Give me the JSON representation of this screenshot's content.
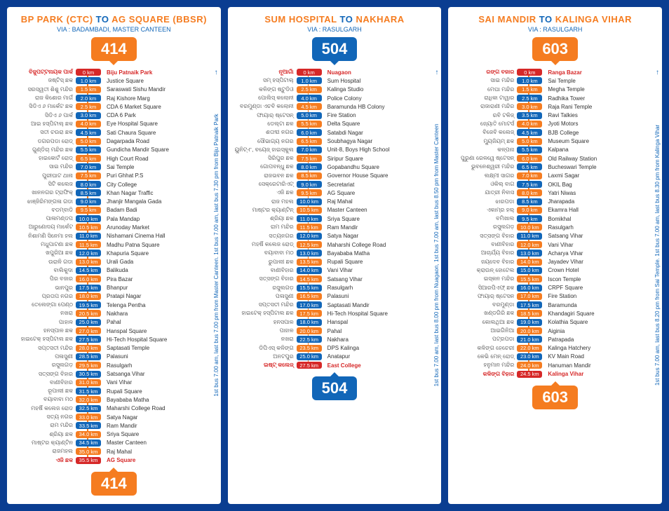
{
  "routes": [
    {
      "badge_color": "orange",
      "number": "414",
      "title_from_pre": "BP PARK (CTC)",
      "title_to": " TO ",
      "title_dest": "AG SQUARE (BBSR)",
      "via": "VIA : BADAMBADI, MASTER CANTEEN",
      "side_note": "1st bus 7.00 am, last bus 7.00 pm from Master Canteen. 1st bus 7.00 am, last bus 7.30 pm from Biju Patnaik Park",
      "stops": [
        {
          "odia": "ବିଜୁପଟ୍ଟନାୟକ ପାର୍କ",
          "km": "0 km",
          "name": "Biju Patnaik Park",
          "terminal": true,
          "km_color": "red"
        },
        {
          "odia": "ଜଷ୍ଟିସ୍ ଛକ",
          "km": "1.0 km",
          "name": "Justice Square",
          "km_color": "blue"
        },
        {
          "odia": "ସରସ୍ୱତୀ ଶିଶୁ ମନ୍ଦିର",
          "km": "1.5 km",
          "name": "Saraswati Sishu Mandir",
          "km_color": "orange"
        },
        {
          "odia": "ରାଜ କିଶୋର ମାର୍ଗ",
          "km": "2.0 km",
          "name": "Raj Kishore Marg",
          "km_color": "blue"
        },
        {
          "odia": "ସିଡିଏ ୬ ମାର୍କେଟ ଛକ",
          "km": "2.5 km",
          "name": "CDA 6 Market Square",
          "km_color": "orange"
        },
        {
          "odia": "ସିଡିଏ ୬ ପାର୍କ",
          "km": "3.0 km",
          "name": "CDA 6 Park",
          "km_color": "blue"
        },
        {
          "odia": "ଆଇ ହସ୍ପିଟାଲ୍ ଛକ",
          "km": "4.0 km",
          "name": "Eye Hospital Square",
          "km_color": "orange"
        },
        {
          "odia": "ସତୀ ଚଉରା ଛକ",
          "km": "4.5 km",
          "name": "Sati Chaura Square",
          "km_color": "blue"
        },
        {
          "odia": "ଡଗରପଡା ରୋଡ୍",
          "km": "5.0 km",
          "name": "Dagarpada Road",
          "km_color": "orange"
        },
        {
          "odia": "ଗୁଣ୍ଡିଚା ମନ୍ଦିର ଛକ",
          "km": "5.5 km",
          "name": "Gundicha Mandir Square",
          "km_color": "blue"
        },
        {
          "odia": "ହାଇକୋର୍ଟ ରୋଡ୍",
          "km": "6.5 km",
          "name": "High Court Road",
          "km_color": "orange"
        },
        {
          "odia": "ସାଇ ମନ୍ଦିର",
          "km": "7.0 km",
          "name": "Sai Temple",
          "km_color": "blue"
        },
        {
          "odia": "ପୁରୀଘାଟ ଥାନା",
          "km": "7.5 km",
          "name": "Puri Ghhat P.S",
          "km_color": "orange"
        },
        {
          "odia": "ସିଟି କଲେଜ",
          "km": "8.0 km",
          "name": "City College",
          "km_color": "blue"
        },
        {
          "odia": "ଖାନନଗର ଟ୍ରାଫିକ୍",
          "km": "8.5 km",
          "name": "Khan Nagar Traffic",
          "km_color": "red"
        },
        {
          "odia": "ଝାଞ୍ଜିରିମଙ୍ଗଳା ଗଡା",
          "km": "9.0 km",
          "name": "Jhanjir Mangala Gada",
          "km_color": "blue"
        },
        {
          "odia": "ବଡମ୍ବାଡି",
          "km": "9.5 km",
          "name": "Badam Badi",
          "km_color": "orange"
        },
        {
          "odia": "ପାଳାମଣ୍ଡପ",
          "km": "10.0 km",
          "name": "Pala Mandap",
          "km_color": "blue"
        },
        {
          "odia": "ଆରୁଣୋଦୟ ମାର୍କେଟ",
          "km": "10.5 km",
          "name": "Arunoday Market",
          "km_color": "orange"
        },
        {
          "odia": "ନିଶାମଣି ସିନେମା ହଲ",
          "km": "11.0 km",
          "name": "Nishamani Cinema Hall",
          "km_color": "blue"
        },
        {
          "odia": "ମଧୁପାଟଣା ଛକ",
          "km": "11.5 km",
          "name": "Madhu Patna Square",
          "km_color": "orange"
        },
        {
          "odia": "ଖପୁରିଆ ଛକ",
          "km": "12.0 km",
          "name": "Khapuria Square",
          "km_color": "blue"
        },
        {
          "odia": "ଉରାଳି ଗଡା",
          "km": "13.0 km",
          "name": "Urali Gada",
          "km_color": "orange"
        },
        {
          "odia": "ବାଲିକୁଦା",
          "km": "14.5 km",
          "name": "Balikuda",
          "km_color": "blue"
        },
        {
          "odia": "ପିର ବଜାର",
          "km": "16.0 km",
          "name": "Pira Bazar",
          "km_color": "orange"
        },
        {
          "odia": "ଭାନପୁର",
          "km": "17.5 km",
          "name": "Bhanpur",
          "km_color": "blue"
        },
        {
          "odia": "ପ୍ରତାପ ନଗର",
          "km": "18.0 km",
          "name": "Pratapi Nagar",
          "km_color": "orange"
        },
        {
          "odia": "ତେଲେଙ୍ଗା ପେଣ୍ଠ",
          "km": "19.5 km",
          "name": "Telenga Pentha",
          "km_color": "blue"
        },
        {
          "odia": "ନଖରା",
          "km": "20.5 km",
          "name": "Nakhara",
          "km_color": "orange"
        },
        {
          "odia": "ପାହାଳ",
          "km": "25.0 km",
          "name": "Pahal",
          "km_color": "blue"
        },
        {
          "odia": "ହନସ୍ପାଳ ଛକ",
          "km": "27.0 km",
          "name": "Hanspal Square",
          "km_color": "orange"
        },
        {
          "odia": "ହାଇଟେକ୍ ହସ୍ପିଟାଲ ଛକ",
          "km": "27.5 km",
          "name": "Hi-Tech Hospital Square",
          "km_color": "blue"
        },
        {
          "odia": "ସପ୍ତସତୀ ମନ୍ଦିର",
          "km": "28.0 km",
          "name": "Saptasati Temple",
          "km_color": "orange"
        },
        {
          "odia": "ପଳାସୁଣୀ",
          "km": "28.5 km",
          "name": "Palasuni",
          "km_color": "blue"
        },
        {
          "odia": "ରସୁଲଗଡ଼",
          "km": "29.5 km",
          "name": "Rasulgarh",
          "km_color": "orange"
        },
        {
          "odia": "ସତ୍ସଙ୍ଗ ବିହାର",
          "km": "30.5 km",
          "name": "Satsanga Vihar",
          "km_color": "blue"
        },
        {
          "odia": "ବାଣୀବିହାର",
          "km": "31.0 km",
          "name": "Vani Vihar",
          "km_color": "orange"
        },
        {
          "odia": "ରୂପାଲୀ ଛକ",
          "km": "31.5 km",
          "name": "Rupali Square",
          "km_color": "blue"
        },
        {
          "odia": "ବୟାବାବା ମଠ",
          "km": "32.0 km",
          "name": "Bayababa Matha",
          "km_color": "orange"
        },
        {
          "odia": "ମହର୍ଷି କଲେଜ ରୋଡ",
          "km": "32.5 km",
          "name": "Maharshi College Road",
          "km_color": "blue"
        },
        {
          "odia": "ସତ୍ୟ ନଗର",
          "km": "33.0 km",
          "name": "Satya Nagar",
          "km_color": "orange"
        },
        {
          "odia": "ରାମ ମନ୍ଦିର",
          "km": "33.5 km",
          "name": "Ram Mandir",
          "km_color": "blue"
        },
        {
          "odia": "ଶ୍ରିୟା ଛକ",
          "km": "34.0 km",
          "name": "Sriya Square",
          "km_color": "orange"
        },
        {
          "odia": "ମାଷ୍ଟର କ୍ୟାଣ୍ଟିନ",
          "km": "34.5 km",
          "name": "Master Canteen",
          "km_color": "blue"
        },
        {
          "odia": "ରାଜମହଲ",
          "km": "35.0 km",
          "name": "Raj Mahal",
          "km_color": "orange"
        },
        {
          "odia": "ଏଜି ଛକ",
          "km": "35.5 km",
          "name": "AG Square",
          "terminal": true,
          "km_color": "red"
        }
      ]
    },
    {
      "badge_color": "blue",
      "number": "504",
      "title_from_pre": "SUM HOSPITAL",
      "title_to": " TO ",
      "title_dest": "NAKHARA",
      "via": "VIA : RASULGARH",
      "side_note": "1st bus 7.00 am, last bus 8.00 pm from Nuagaon, 1st bus 7.00 am, last bus 8.50 pm from Master Canteen",
      "stops": [
        {
          "odia": "ନୂଆଗାଁ",
          "km": "0 km",
          "name": "Nuagaon",
          "terminal": true,
          "km_color": "red"
        },
        {
          "odia": "ସମ୍ ହସ୍ପିଟାଲ୍",
          "km": "1.0 km",
          "name": "Sum Hospital",
          "km_color": "blue"
        },
        {
          "odia": "କଳିଙ୍ଗ ଷ୍ଟୁଡିଓ",
          "km": "2.5 km",
          "name": "Kalinga Studio",
          "km_color": "orange"
        },
        {
          "odia": "ପୋଲିସ୍ କଲୋନୀ",
          "km": "4.0 km",
          "name": "Police Colony",
          "km_color": "blue"
        },
        {
          "odia": "ବରମୁଣ୍ଡା ଏଚବି କଲୋନୀ",
          "km": "4.5 km",
          "name": "Baramunda HB Colony",
          "km_color": "orange"
        },
        {
          "odia": "ଫାୟାର୍ ଷ୍ଟେସନ୍",
          "km": "5.0 km",
          "name": "Fire Station",
          "km_color": "blue"
        },
        {
          "odia": "ଡେଲ୍ଟା ଛକ",
          "km": "5.5 km",
          "name": "Delta Square",
          "km_color": "orange"
        },
        {
          "odia": "ଶତାବ୍ଦୀ ନଗର",
          "km": "6.0 km",
          "name": "Satabdi Nagar",
          "km_color": "blue"
        },
        {
          "odia": "ସୌଭାଗ୍ୟ ନଗର",
          "km": "6.5 km",
          "name": "Soubhagya Nagar",
          "km_color": "orange"
        },
        {
          "odia": "ୟୁନିଟ୍-୮, ବୟେଜ୍ ହାଇସ୍କୁଲ",
          "km": "7.0 km",
          "name": "Unit-8, Boys High School",
          "km_color": "blue"
        },
        {
          "odia": "ସିରିପୁର ଛକ",
          "km": "7.5 km",
          "name": "Siripur Square",
          "km_color": "orange"
        },
        {
          "odia": "ଗୋପବନ୍ଧୁ ଛକ",
          "km": "8.0 km",
          "name": "Gopabandhu Square",
          "km_color": "blue"
        },
        {
          "odia": "ରାଜଭବନ ଛକ",
          "km": "8.5 km",
          "name": "Governor House Square",
          "km_color": "orange"
        },
        {
          "odia": "ସେକ୍ରେଟାରିଏଟ୍",
          "km": "9.0 km",
          "name": "Secretariat",
          "km_color": "blue"
        },
        {
          "odia": "ଏଜି ଛକ",
          "km": "9.5 km",
          "name": "AG Square",
          "km_color": "orange"
        },
        {
          "odia": "ରାଜ ମହଲ",
          "km": "10.0 km",
          "name": "Raj Mahal",
          "km_color": "blue"
        },
        {
          "odia": "ମାଷ୍ଟର କ୍ୟାଣ୍ଟିନ୍",
          "km": "10.5 km",
          "name": "Master Canteen",
          "km_color": "orange"
        },
        {
          "odia": "ଶ୍ରିୟା ଛକ",
          "km": "11.0 km",
          "name": "Sriya Square",
          "km_color": "blue"
        },
        {
          "odia": "ରାମ ମନ୍ଦିର",
          "km": "11.5 km",
          "name": "Ram Mandir",
          "km_color": "orange"
        },
        {
          "odia": "ସତ୍ୟନଗର",
          "km": "12.0 km",
          "name": "Satya Nagar",
          "km_color": "blue"
        },
        {
          "odia": "ମହର୍ଷି କଲେଜ ରୋଡ୍",
          "km": "12.5 km",
          "name": "Maharshi College Road",
          "km_color": "orange"
        },
        {
          "odia": "ବୟାବାବା ମଠ",
          "km": "13.0 km",
          "name": "Bayababa Matha",
          "km_color": "blue"
        },
        {
          "odia": "ରୁପାଲୀ ଛକ",
          "km": "13.5 km",
          "name": "Rupali Square",
          "km_color": "orange"
        },
        {
          "odia": "ବାଣୀବିହାର",
          "km": "14.0 km",
          "name": "Vani Vihar",
          "km_color": "blue"
        },
        {
          "odia": "ସତ୍ସଙ୍ଗ ବିହାର",
          "km": "14.5 km",
          "name": "Satsang Vihar",
          "km_color": "orange"
        },
        {
          "odia": "ରସୁଲଗଡ଼",
          "km": "15.5 km",
          "name": "Rasulgarh",
          "km_color": "blue"
        },
        {
          "odia": "ପଳାସୁଣୀ",
          "km": "16.5 km",
          "name": "Palasuni",
          "km_color": "orange"
        },
        {
          "odia": "ସପ୍ତସତୀ ମନ୍ଦିର",
          "km": "17.0 km",
          "name": "Saptasati Mandir",
          "km_color": "blue"
        },
        {
          "odia": "ହାଇଟେକ୍ ହସ୍ପିଟାଲ ଛକ",
          "km": "17.5 km",
          "name": "Hi-Tech Hospital Square",
          "km_color": "orange"
        },
        {
          "odia": "ହନସପାଳ",
          "km": "18.0 km",
          "name": "Hanspal",
          "km_color": "blue"
        },
        {
          "odia": "ପାହାଳ",
          "km": "20.0 km",
          "name": "Pahal",
          "km_color": "orange"
        },
        {
          "odia": "ନଖରା",
          "km": "22.5 km",
          "name": "Nakhara",
          "km_color": "blue"
        },
        {
          "odia": "ଡିପିଏସ୍ କଳିଙ୍ଗ",
          "km": "23.5 km",
          "name": "DPS Kalinga",
          "km_color": "orange"
        },
        {
          "odia": "ଅନଟପୁର",
          "km": "25.0 km",
          "name": "Anatapur",
          "km_color": "blue"
        },
        {
          "odia": "ଇଷ୍ଟ୍ କଲେଜ୍",
          "km": "27.5 km",
          "name": "East College",
          "terminal": true,
          "km_color": "red"
        }
      ]
    },
    {
      "badge_color": "orange",
      "number": "603",
      "title_from_pre": "SAI MANDIR",
      "title_to": " TO ",
      "title_dest": "KALINGA VIHAR",
      "via": "VIA : RASULGARH",
      "side_note": "1st bus 7.00 am, last bus 8.20 pm from Sai Temple. 1st bus 7.00 am, last bus 8.30 pm from Kalinga Vihar",
      "stops": [
        {
          "odia": "ରଙ୍ଗ ବଜାର",
          "km": "0 km",
          "name": "Ranga Bazar",
          "terminal": true,
          "km_color": "red"
        },
        {
          "odia": "ସାଇ ମନ୍ଦିର",
          "km": "1.0 km",
          "name": "Sai Temple",
          "km_color": "blue"
        },
        {
          "odia": "ମେଘା ମନ୍ଦିର",
          "km": "1.5 km",
          "name": "Megha Temple",
          "km_color": "orange"
        },
        {
          "odia": "ରାଧିକା ଟାୱାର",
          "km": "2.5 km",
          "name": "Radhika Tower",
          "km_color": "blue"
        },
        {
          "odia": "ରାଜାରାଣୀ ମନ୍ଦିର",
          "km": "3.0 km",
          "name": "Raja Rani Temple",
          "km_color": "orange"
        },
        {
          "odia": "ରବି ଟକିଜ୍",
          "km": "3.5 km",
          "name": "Ravi Talkies",
          "km_color": "blue"
        },
        {
          "odia": "ଜ୍ୟୋତି ମୋଟର୍ସ",
          "km": "4.0 km",
          "name": "Jyoti Motors",
          "km_color": "orange"
        },
        {
          "odia": "ବିଜେବି କଲେଜ୍",
          "km": "4.5 km",
          "name": "BJB College",
          "km_color": "blue"
        },
        {
          "odia": "ମ୍ୟୁଜିୟମ୍ ଛକ",
          "km": "5.0 km",
          "name": "Museum Square",
          "km_color": "orange"
        },
        {
          "odia": "କଳ୍ପନା",
          "km": "5.5 km",
          "name": "Kalpana",
          "km_color": "blue"
        },
        {
          "odia": "ପୁରୁଣା ରେଳୱେ ଷ୍ଟେସନ୍",
          "km": "6.0 km",
          "name": "Old Railway Station",
          "km_color": "orange"
        },
        {
          "odia": "ଭୁବନେଶ୍ୱରୀ ମନ୍ଦିର",
          "km": "6.5 km",
          "name": "Bucheswari Temple",
          "km_color": "blue"
        },
        {
          "odia": "ଲକ୍ଷ୍ମୀ ସାଗର",
          "km": "7.0 km",
          "name": "Laxmi Sagar",
          "km_color": "orange"
        },
        {
          "odia": "ଓକିଲ୍ ବାଗ",
          "km": "7.5 km",
          "name": "OKIL Bag",
          "km_color": "blue"
        },
        {
          "odia": "ଯାତ୍ରୀ ନିବାସ",
          "km": "8.0 km",
          "name": "Yatri Niwas",
          "km_color": "orange"
        },
        {
          "odia": "ଝାରପଡା",
          "km": "8.5 km",
          "name": "Jharapada",
          "km_color": "blue"
        },
        {
          "odia": "ଏକାମ୍ର ହଲ୍",
          "km": "9.0 km",
          "name": "Ekamra Hall",
          "km_color": "orange"
        },
        {
          "odia": "ବମିଖାଲ",
          "km": "9.5 km",
          "name": "Bomikhal",
          "km_color": "blue"
        },
        {
          "odia": "ରସୁଲଗଡ଼",
          "km": "10.0 km",
          "name": "Rasulgarh",
          "km_color": "orange"
        },
        {
          "odia": "ସତ୍ସଙ୍ଗ ବିହାର",
          "km": "11.0 km",
          "name": "Satsang Vihar",
          "km_color": "blue"
        },
        {
          "odia": "ବାଣୀବିହାର",
          "km": "12.0 km",
          "name": "Vani Vihar",
          "km_color": "orange"
        },
        {
          "odia": "ଆଚାର୍ଯ୍ୟ ବିହାର",
          "km": "13.0 km",
          "name": "Acharya Vihar",
          "km_color": "blue"
        },
        {
          "odia": "ଜୟଦେବ ବିହାର",
          "km": "14.0 km",
          "name": "Jayadev Vihar",
          "km_color": "orange"
        },
        {
          "odia": "କ୍ରାଉନ୍ ହୋଟେଲ",
          "km": "15.0 km",
          "name": "Crown Hotel",
          "km_color": "blue"
        },
        {
          "odia": "ଇସ୍କନ ମନ୍ଦିର",
          "km": "15.5 km",
          "name": "Iscon Temple",
          "km_color": "orange"
        },
        {
          "odia": "ସିଆରପିଏଫ୍ ଛକ",
          "km": "16.0 km",
          "name": "CRPF Square",
          "km_color": "blue"
        },
        {
          "odia": "ଫାୟାର୍ ଷ୍ଟେସନ",
          "km": "17.0 km",
          "name": "Fire Station",
          "km_color": "orange"
        },
        {
          "odia": "ବରମୁଣ୍ଡା",
          "km": "17.5 km",
          "name": "Baramunda",
          "km_color": "blue"
        },
        {
          "odia": "ଖଣ୍ଡଗିରି ଛକ",
          "km": "18.5 km",
          "name": "Khandagiri Square",
          "km_color": "orange"
        },
        {
          "odia": "କୋଲଥିଆ ଛକ",
          "km": "19.0 km",
          "name": "Kolathia Square",
          "km_color": "blue"
        },
        {
          "odia": "ଆଇଗିନିଆ",
          "km": "20.0 km",
          "name": "Aiginia",
          "km_color": "orange"
        },
        {
          "odia": "ପଟ୍ରପଡା",
          "km": "21.0 km",
          "name": "Patrapada",
          "km_color": "blue"
        },
        {
          "odia": "କଳିଙ୍ଗ ହେଚେରୀ",
          "km": "22.0 km",
          "name": "Kalinga Hatchery",
          "km_color": "orange"
        },
        {
          "odia": "କେଭି ମେନ୍ ରୋଡ୍",
          "km": "23.0 km",
          "name": "KV Main Road",
          "km_color": "blue"
        },
        {
          "odia": "ହନୁମାନ ମନ୍ଦିର",
          "km": "24.0 km",
          "name": "Hanuman Mandir",
          "km_color": "orange"
        },
        {
          "odia": "କଳିଙ୍ଗ ବିହାର",
          "km": "24.5 km",
          "name": "Kalinga Vihar",
          "terminal": true,
          "km_color": "red"
        }
      ]
    }
  ]
}
